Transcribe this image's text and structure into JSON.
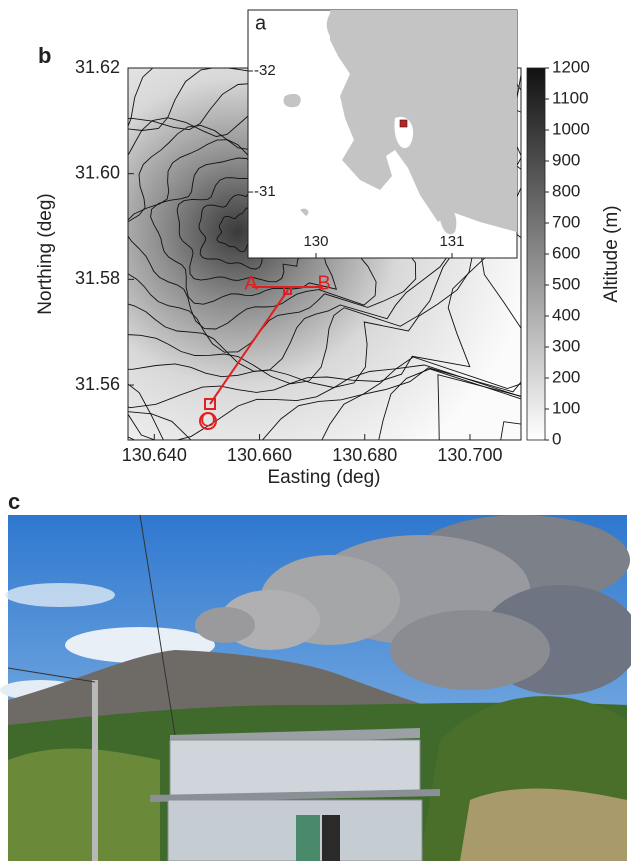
{
  "panel_b": {
    "label": "b",
    "x_axis": {
      "title": "Easting (deg)",
      "lim": [
        130.635,
        130.7097
      ],
      "ticks": [
        {
          "value": 130.64,
          "label": "130.640"
        },
        {
          "value": 130.66,
          "label": "130.660"
        },
        {
          "value": 130.68,
          "label": "130.680"
        },
        {
          "value": 130.7,
          "label": "130.700"
        }
      ]
    },
    "y_axis": {
      "title": "Northing (deg)",
      "lim": [
        31.5496,
        31.62
      ],
      "ticks": [
        31.62,
        {
          "value": 31.6,
          "label": "31.60"
        },
        31.58,
        31.56
      ]
    },
    "point_labels": [
      "A",
      "B",
      "O"
    ]
  },
  "colorbar": {
    "title": "Altitude (m)",
    "lim": [
      0,
      1200
    ],
    "ticks": [
      0,
      100,
      200,
      300,
      400,
      500,
      600,
      700,
      800,
      900,
      1000,
      1100,
      1200
    ]
  },
  "panel_a": {
    "label": "a",
    "x_axis": {
      "lim": [
        129.5,
        131.478
      ],
      "ticks": [
        130,
        131
      ]
    },
    "y_axis": {
      "lim": [
        -32.504,
        -30.455
      ],
      "ticks": [
        -32,
        -31
      ]
    }
  },
  "panel_c": {
    "label": "c"
  }
}
